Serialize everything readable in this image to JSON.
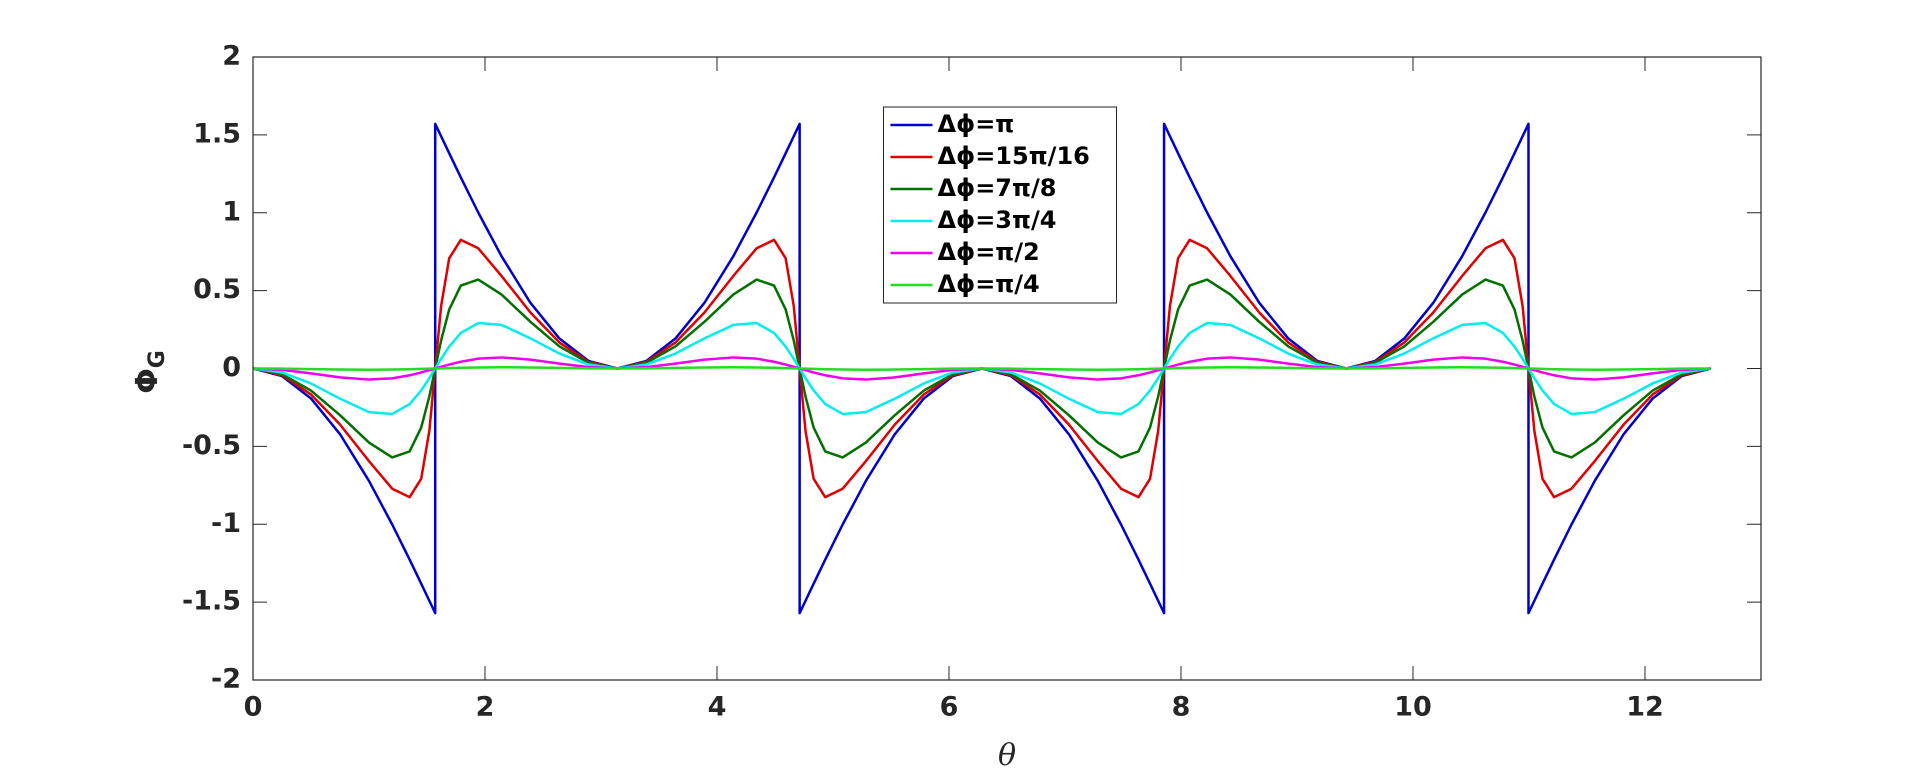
{
  "chart_data": {
    "type": "line",
    "xlabel": "θ",
    "ylabel": "Φ",
    "ylabel_subscript": "G",
    "xlim": [
      0,
      13
    ],
    "ylim": [
      -2,
      2
    ],
    "xticks": [
      0,
      2,
      4,
      6,
      8,
      10,
      12
    ],
    "yticks": [
      -2,
      -1.5,
      -1,
      -0.5,
      0,
      0.5,
      1,
      1.5,
      2
    ],
    "grid": false,
    "legend": "upper center",
    "x": [
      0,
      0.25,
      0.5,
      0.75,
      1.0,
      1.2,
      1.35,
      1.45,
      1.52,
      1.5708,
      1.5708,
      1.6216,
      1.6916,
      1.7916,
      1.9416,
      2.1416,
      2.3916,
      2.6416,
      2.8916,
      3.1416,
      3.3916,
      3.6416,
      3.8916,
      4.1416,
      4.3416,
      4.4916,
      4.5916,
      4.6616,
      4.7124,
      4.7124,
      4.7632,
      4.8332,
      4.9332,
      5.0832,
      5.2832,
      5.5332,
      5.7832,
      6.0332,
      6.2832,
      6.5332,
      6.7832,
      7.0332,
      7.2832,
      7.4832,
      7.6332,
      7.7332,
      7.8032,
      7.854,
      7.854,
      7.9048,
      7.9748,
      8.0748,
      8.2248,
      8.4248,
      8.6748,
      8.9248,
      9.1748,
      9.4248,
      9.6748,
      9.9248,
      10.1748,
      10.4248,
      10.6248,
      10.7748,
      10.8748,
      10.9448,
      10.9956,
      10.9956,
      11.0464,
      11.1164,
      11.2164,
      11.3664,
      11.5664,
      11.8164,
      12.0664,
      12.3164,
      12.5664
    ],
    "series": [
      {
        "name": "Δϕ=π",
        "color": "#0000cc",
        "values": [
          0,
          -0.0488,
          -0.1923,
          -0.4215,
          -0.7221,
          -1.0016,
          -1.2268,
          -1.3815,
          -1.4911,
          -1.5708,
          1.5708,
          1.4911,
          1.3815,
          1.2268,
          1.0016,
          0.7221,
          0.4215,
          0.1923,
          0.0488,
          0,
          0.0488,
          0.1923,
          0.4215,
          0.7221,
          1.0016,
          1.2268,
          1.3815,
          1.4911,
          1.5708,
          -1.5708,
          -1.4911,
          -1.3815,
          -1.2268,
          -1.0016,
          -0.7221,
          -0.4215,
          -0.1923,
          -0.0488,
          0,
          -0.0488,
          -0.1923,
          -0.4215,
          -0.7221,
          -1.0016,
          -1.2268,
          -1.3815,
          -1.4911,
          -1.5708,
          1.5708,
          1.4911,
          1.3815,
          1.2268,
          1.0016,
          0.7221,
          0.4215,
          0.1923,
          0.0488,
          0,
          0.0488,
          0.1923,
          0.4215,
          0.7221,
          1.0016,
          1.2268,
          1.3815,
          1.4911,
          1.5708,
          -1.5708,
          -1.4911,
          -1.3815,
          -1.2268,
          -1.0016,
          -0.7221,
          -0.4215,
          -0.1923,
          -0.0488,
          0
        ]
      },
      {
        "name": "Δϕ=15π/16",
        "color": "#e00000",
        "values": [
          0,
          -0.0427,
          -0.1667,
          -0.3595,
          -0.5948,
          -0.7718,
          -0.826,
          -0.7081,
          -0.4012,
          0,
          0,
          0.4012,
          0.7081,
          0.826,
          0.7718,
          0.5948,
          0.3595,
          0.1667,
          0.0427,
          0,
          0.0427,
          0.1667,
          0.3595,
          0.5948,
          0.7718,
          0.826,
          0.7081,
          0.4012,
          0,
          0,
          -0.4012,
          -0.7081,
          -0.826,
          -0.7718,
          -0.5948,
          -0.3595,
          -0.1667,
          -0.0427,
          0,
          -0.0427,
          -0.1667,
          -0.3595,
          -0.5948,
          -0.7718,
          -0.826,
          -0.7081,
          -0.4012,
          0,
          0,
          0.4012,
          0.7081,
          0.826,
          0.7718,
          0.5948,
          0.3595,
          0.1667,
          0.0427,
          0,
          0.0427,
          0.1667,
          0.3595,
          0.5948,
          0.7718,
          0.826,
          0.7081,
          0.4012,
          0,
          0,
          -0.4012,
          -0.7081,
          -0.826,
          -0.7718,
          -0.5948,
          -0.3595,
          -0.1667,
          -0.0427,
          0
        ]
      },
      {
        "name": "Δϕ=7π/8",
        "color": "#007000",
        "values": [
          0,
          -0.0366,
          -0.1417,
          -0.2997,
          -0.4754,
          -0.5707,
          -0.5324,
          -0.3791,
          -0.1801,
          0,
          0,
          0.1801,
          0.3791,
          0.5324,
          0.5707,
          0.4754,
          0.2997,
          0.1417,
          0.0366,
          0,
          0.0366,
          0.1417,
          0.2997,
          0.4754,
          0.5707,
          0.5324,
          0.3791,
          0.1801,
          0,
          0,
          -0.1801,
          -0.3791,
          -0.5324,
          -0.5707,
          -0.4754,
          -0.2997,
          -0.1417,
          -0.0366,
          0,
          -0.0366,
          -0.1417,
          -0.2997,
          -0.4754,
          -0.5707,
          -0.5324,
          -0.3791,
          -0.1801,
          0,
          0,
          0.1801,
          0.3791,
          0.5324,
          0.5707,
          0.4754,
          0.2997,
          0.1417,
          0.0366,
          0,
          0.0366,
          0.1417,
          0.2997,
          0.4754,
          0.5707,
          0.5324,
          0.3791,
          0.1801,
          0,
          0,
          -0.1801,
          -0.3791,
          -0.5324,
          -0.5707,
          -0.4754,
          -0.2997,
          -0.1417,
          -0.0366,
          0
        ]
      },
      {
        "name": "Δϕ=3π/4",
        "color": "#00eeee",
        "values": [
          0,
          -0.0254,
          -0.0958,
          -0.1937,
          -0.2802,
          -0.2918,
          -0.2284,
          -0.1412,
          -0.0622,
          0,
          0,
          0.0622,
          0.1412,
          0.2284,
          0.2918,
          0.2802,
          0.1937,
          0.0958,
          0.0254,
          0,
          0.0254,
          0.0958,
          0.1937,
          0.2802,
          0.2918,
          0.2284,
          0.1412,
          0.0622,
          0,
          0,
          -0.0622,
          -0.1412,
          -0.2284,
          -0.2918,
          -0.2802,
          -0.1937,
          -0.0958,
          -0.0254,
          0,
          -0.0254,
          -0.0958,
          -0.1937,
          -0.2802,
          -0.2918,
          -0.2284,
          -0.1412,
          -0.0622,
          0,
          0,
          0.0622,
          0.1412,
          0.2284,
          0.2918,
          0.2802,
          0.1937,
          0.0958,
          0.0254,
          0,
          0.0254,
          0.0958,
          0.1937,
          0.2802,
          0.2918,
          0.2284,
          0.1412,
          0.0622,
          0,
          0,
          -0.0622,
          -0.1412,
          -0.2284,
          -0.2918,
          -0.2802,
          -0.1937,
          -0.0958,
          -0.0254,
          0
        ]
      },
      {
        "name": "Δϕ=π/2",
        "color": "#ee00ee",
        "values": [
          0,
          -0.0086,
          -0.031,
          -0.057,
          -0.071,
          -0.0631,
          -0.0436,
          -0.0253,
          -0.0109,
          0,
          0,
          0.0109,
          0.0253,
          0.0436,
          0.0631,
          0.071,
          0.057,
          0.031,
          0.0086,
          0,
          0.0086,
          0.031,
          0.057,
          0.071,
          0.0631,
          0.0436,
          0.0253,
          0.0109,
          0,
          0,
          -0.0109,
          -0.0253,
          -0.0436,
          -0.0631,
          -0.071,
          -0.057,
          -0.031,
          -0.0086,
          0,
          -0.0086,
          -0.031,
          -0.057,
          -0.071,
          -0.0631,
          -0.0436,
          -0.0253,
          -0.0109,
          0,
          0,
          0.0109,
          0.0253,
          0.0436,
          0.0631,
          0.071,
          0.057,
          0.031,
          0.0086,
          0,
          0.0086,
          0.031,
          0.057,
          0.071,
          0.0631,
          0.0436,
          0.0253,
          0.0109,
          0,
          0,
          -0.0109,
          -0.0253,
          -0.0436,
          -0.0631,
          -0.071,
          -0.057,
          -0.031,
          -0.0086,
          0
        ]
      },
      {
        "name": "Δϕ=π/4",
        "color": "#22dd22",
        "values": [
          0,
          -0.0011,
          -0.004,
          -0.0066,
          -0.008,
          -0.0067,
          -0.0045,
          -0.0026,
          -0.0011,
          0,
          0,
          0.0011,
          0.0026,
          0.0045,
          0.0067,
          0.008,
          0.0066,
          0.004,
          0.0011,
          0,
          0.0011,
          0.004,
          0.0066,
          0.008,
          0.0067,
          0.0045,
          0.0026,
          0.0011,
          0,
          0,
          -0.0011,
          -0.0026,
          -0.0045,
          -0.0067,
          -0.008,
          -0.0066,
          -0.004,
          -0.0011,
          0,
          -0.0011,
          -0.004,
          -0.0066,
          -0.008,
          -0.0067,
          -0.0045,
          -0.0026,
          -0.0011,
          0,
          0,
          0.0011,
          0.0026,
          0.0045,
          0.0067,
          0.008,
          0.0066,
          0.004,
          0.0011,
          0,
          0.0011,
          0.004,
          0.0066,
          0.008,
          0.0067,
          0.0045,
          0.0026,
          0.0011,
          0,
          0,
          -0.0011,
          -0.0026,
          -0.0045,
          -0.0067,
          -0.008,
          -0.0066,
          -0.004,
          -0.0011,
          0
        ]
      }
    ]
  }
}
